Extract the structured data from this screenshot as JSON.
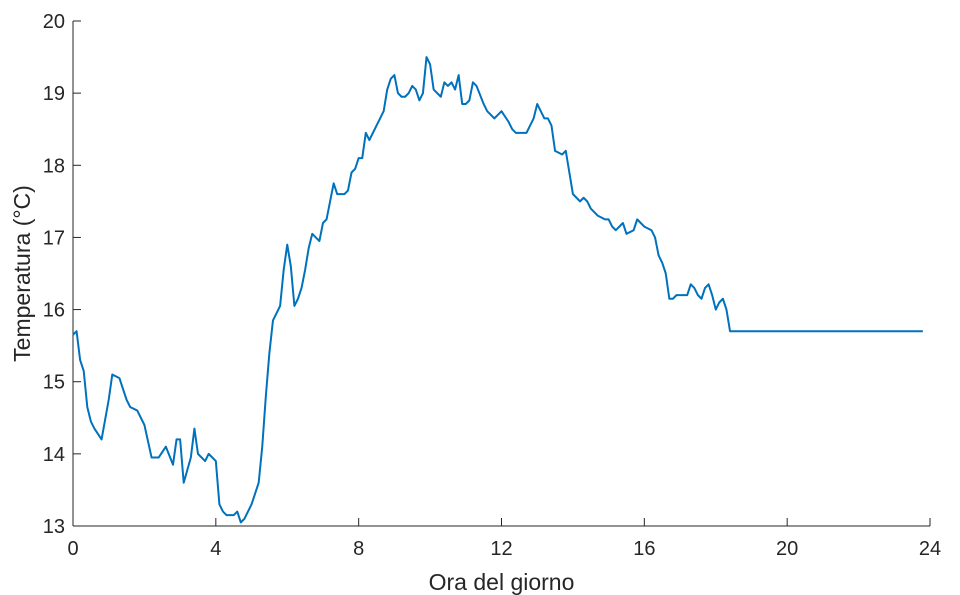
{
  "chart_data": {
    "type": "line",
    "title": "",
    "xlabel": "Ora del giorno",
    "ylabel": "Temperatura (°C)",
    "xlim": [
      0,
      24
    ],
    "ylim": [
      13,
      20
    ],
    "grid": false,
    "x_ticks": [
      0,
      4,
      8,
      12,
      16,
      20,
      24
    ],
    "x_tick_labels": [
      "0",
      "4",
      "8",
      "12",
      "16",
      "20",
      "24"
    ],
    "y_ticks": [
      13,
      14,
      15,
      16,
      17,
      18,
      19,
      20
    ],
    "y_tick_labels": [
      "13",
      "14",
      "15",
      "16",
      "17",
      "18",
      "19",
      "20"
    ],
    "series": [
      {
        "color": "#0072BD",
        "x": [
          0,
          0.1,
          0.2,
          0.3,
          0.4,
          0.5,
          0.6,
          0.8,
          1.0,
          1.1,
          1.3,
          1.5,
          1.6,
          1.8,
          2.0,
          2.2,
          2.4,
          2.6,
          2.8,
          2.9,
          3.0,
          3.1,
          3.3,
          3.4,
          3.5,
          3.7,
          3.8,
          4.0,
          4.1,
          4.2,
          4.3,
          4.5,
          4.6,
          4.7,
          4.8,
          5.0,
          5.1,
          5.2,
          5.3,
          5.4,
          5.5,
          5.6,
          5.7,
          5.8,
          5.9,
          6.0,
          6.1,
          6.2,
          6.3,
          6.4,
          6.5,
          6.6,
          6.7,
          6.8,
          6.9,
          7.0,
          7.1,
          7.3,
          7.4,
          7.5,
          7.6,
          7.7,
          7.8,
          7.9,
          8.0,
          8.1,
          8.2,
          8.3,
          8.4,
          8.5,
          8.6,
          8.7,
          8.8,
          8.9,
          9.0,
          9.1,
          9.2,
          9.3,
          9.4,
          9.5,
          9.6,
          9.7,
          9.8,
          9.9,
          10.0,
          10.1,
          10.3,
          10.4,
          10.5,
          10.6,
          10.7,
          10.8,
          10.9,
          11.0,
          11.1,
          11.2,
          11.3,
          11.5,
          11.6,
          11.7,
          11.8,
          11.9,
          12.0,
          12.2,
          12.3,
          12.4,
          12.6,
          12.7,
          12.8,
          12.9,
          13.0,
          13.2,
          13.3,
          13.4,
          13.5,
          13.7,
          13.8,
          13.9,
          14.0,
          14.2,
          14.3,
          14.4,
          14.5,
          14.6,
          14.7,
          14.9,
          15.0,
          15.1,
          15.2,
          15.4,
          15.5,
          15.7,
          15.8,
          15.9,
          16.0,
          16.2,
          16.3,
          16.4,
          16.5,
          16.6,
          16.7,
          16.8,
          16.9,
          17.0,
          17.2,
          17.3,
          17.4,
          17.5,
          17.6,
          17.7,
          17.8,
          17.9,
          18.0,
          18.1,
          18.2,
          18.3,
          18.4,
          18.5,
          18.6,
          18.7,
          18.8,
          18.9,
          19.0,
          19.1,
          19.2,
          19.3,
          19.4,
          19.5,
          19.6,
          19.8,
          19.9,
          20.0,
          20.1,
          20.2,
          20.4,
          20.5,
          20.6,
          20.7,
          20.8,
          20.9,
          21.0,
          21.1,
          21.2,
          21.3,
          21.4,
          21.5,
          21.6,
          21.7,
          21.8,
          21.9,
          22.0,
          22.1,
          22.2,
          22.3,
          22.4,
          22.5,
          22.7,
          22.8,
          22.9,
          23.0,
          23.1,
          23.3,
          23.4,
          23.5,
          23.7,
          23.8
        ],
        "y": [
          15.65,
          15.7,
          15.3,
          15.15,
          14.65,
          14.45,
          14.35,
          14.2,
          14.75,
          15.1,
          15.05,
          14.75,
          14.65,
          14.6,
          14.4,
          13.95,
          13.95,
          14.1,
          13.85,
          14.2,
          14.2,
          13.6,
          13.95,
          14.35,
          14.0,
          13.9,
          14.0,
          13.9,
          13.3,
          13.2,
          13.15,
          13.15,
          13.2,
          13.05,
          13.1,
          13.3,
          13.45,
          13.6,
          14.1,
          14.8,
          15.4,
          15.85,
          15.95,
          16.05,
          16.55,
          16.9,
          16.6,
          16.05,
          16.15,
          16.3,
          16.55,
          16.85,
          17.05,
          17.0,
          16.95,
          17.2,
          17.25,
          17.75,
          17.6,
          17.6,
          17.6,
          17.65,
          17.9,
          17.95,
          18.1,
          18.1,
          18.45,
          18.35,
          18.45,
          18.55,
          18.65,
          18.75,
          19.05,
          19.2,
          19.25,
          19.0,
          18.95,
          18.95,
          19.0,
          19.1,
          19.05,
          18.9,
          19.0,
          19.5,
          19.4,
          19.05,
          18.95,
          19.15,
          19.1,
          19.15,
          19.05,
          19.25,
          18.85,
          18.85,
          18.9,
          19.15,
          19.1,
          18.85,
          18.75,
          18.7,
          18.65,
          18.7,
          18.75,
          18.6,
          18.5,
          18.45,
          18.45,
          18.45,
          18.55,
          18.65,
          18.85,
          18.65,
          18.65,
          18.55,
          18.2,
          18.15,
          18.2,
          17.9,
          17.6,
          17.5,
          17.55,
          17.5,
          17.4,
          17.35,
          17.3,
          17.25,
          17.25,
          17.15,
          17.1,
          17.2,
          17.05,
          17.1,
          17.25,
          17.2,
          17.15,
          17.1,
          17.0,
          16.75,
          16.65,
          16.5,
          16.15,
          16.15,
          16.2,
          16.2,
          16.2,
          16.35,
          16.3,
          16.2,
          16.15,
          16.3,
          16.35,
          16.2,
          16.0,
          16.1,
          16.15,
          16.0,
          15.7,
          15.7,
          15.7,
          15.7,
          15.7,
          15.7,
          15.7,
          15.7,
          15.7,
          15.7,
          15.7,
          15.7,
          15.7,
          15.7,
          15.7,
          15.7,
          15.7,
          15.7,
          15.7,
          15.7,
          15.7,
          15.7,
          15.7,
          15.7,
          15.7,
          15.7,
          15.7,
          15.7,
          15.7,
          15.7,
          15.7,
          15.7,
          15.7,
          15.7,
          15.7,
          15.7,
          15.7,
          15.7,
          15.7,
          15.7,
          15.7,
          15.7,
          15.7,
          15.7,
          15.7,
          15.7,
          15.7,
          15.7,
          15.7,
          15.7
        ]
      }
    ]
  }
}
